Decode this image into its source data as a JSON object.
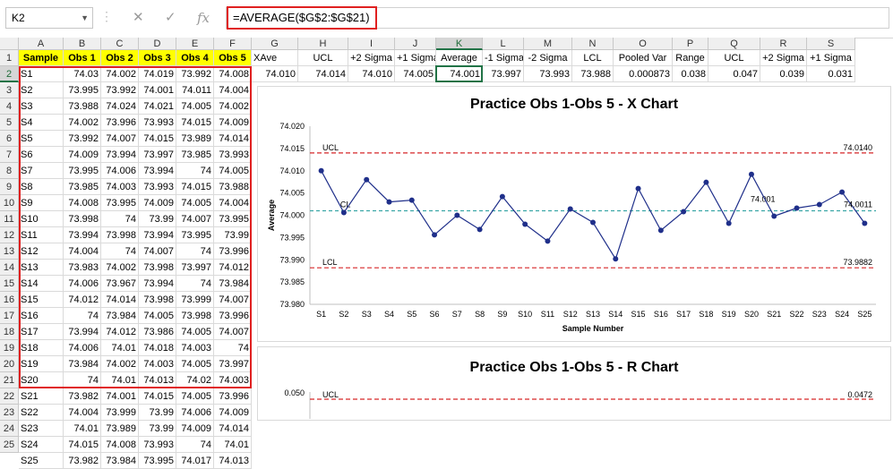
{
  "namebox": "K2",
  "formula": "=AVERAGE($G$2:$G$21)",
  "columns": [
    "A",
    "B",
    "C",
    "D",
    "E",
    "F",
    "G",
    "H",
    "I",
    "J",
    "K",
    "L",
    "M",
    "N",
    "O",
    "P",
    "Q",
    "R",
    "S"
  ],
  "header_row": [
    "Sample",
    "Obs 1",
    "Obs 2",
    "Obs 3",
    "Obs 4",
    "Obs 5",
    "XAve",
    "UCL",
    "+2 Sigma",
    "+1 Sigma",
    "Average",
    "-1 Sigma",
    "-2 Sigma",
    "LCL",
    "Pooled Var",
    "Range",
    "UCL",
    "+2 Sigma",
    "+1 Sigma"
  ],
  "row2_values": [
    "74.010",
    "74.014",
    "74.010",
    "74.005",
    "74.001",
    "73.997",
    "73.993",
    "73.988",
    "0.000873",
    "0.038",
    "0.047",
    "0.039",
    "0.031"
  ],
  "rows": [
    [
      "S1",
      "74.03",
      "74.002",
      "74.019",
      "73.992",
      "74.008"
    ],
    [
      "S2",
      "73.995",
      "73.992",
      "74.001",
      "74.011",
      "74.004"
    ],
    [
      "S3",
      "73.988",
      "74.024",
      "74.021",
      "74.005",
      "74.002"
    ],
    [
      "S4",
      "74.002",
      "73.996",
      "73.993",
      "74.015",
      "74.009"
    ],
    [
      "S5",
      "73.992",
      "74.007",
      "74.015",
      "73.989",
      "74.014"
    ],
    [
      "S6",
      "74.009",
      "73.994",
      "73.997",
      "73.985",
      "73.993"
    ],
    [
      "S7",
      "73.995",
      "74.006",
      "73.994",
      "74",
      "74.005"
    ],
    [
      "S8",
      "73.985",
      "74.003",
      "73.993",
      "74.015",
      "73.988"
    ],
    [
      "S9",
      "74.008",
      "73.995",
      "74.009",
      "74.005",
      "74.004"
    ],
    [
      "S10",
      "73.998",
      "74",
      "73.99",
      "74.007",
      "73.995"
    ],
    [
      "S11",
      "73.994",
      "73.998",
      "73.994",
      "73.995",
      "73.99"
    ],
    [
      "S12",
      "74.004",
      "74",
      "74.007",
      "74",
      "73.996"
    ],
    [
      "S13",
      "73.983",
      "74.002",
      "73.998",
      "73.997",
      "74.012"
    ],
    [
      "S14",
      "74.006",
      "73.967",
      "73.994",
      "74",
      "73.984"
    ],
    [
      "S15",
      "74.012",
      "74.014",
      "73.998",
      "73.999",
      "74.007"
    ],
    [
      "S16",
      "74",
      "73.984",
      "74.005",
      "73.998",
      "73.996"
    ],
    [
      "S17",
      "73.994",
      "74.012",
      "73.986",
      "74.005",
      "74.007"
    ],
    [
      "S18",
      "74.006",
      "74.01",
      "74.018",
      "74.003",
      "74"
    ],
    [
      "S19",
      "73.984",
      "74.002",
      "74.003",
      "74.005",
      "73.997"
    ],
    [
      "S20",
      "74",
      "74.01",
      "74.013",
      "74.02",
      "74.003"
    ],
    [
      "S21",
      "73.982",
      "74.001",
      "74.015",
      "74.005",
      "73.996"
    ],
    [
      "S22",
      "74.004",
      "73.999",
      "73.99",
      "74.006",
      "74.009"
    ],
    [
      "S23",
      "74.01",
      "73.989",
      "73.99",
      "74.009",
      "74.014"
    ],
    [
      "S24",
      "74.015",
      "74.008",
      "73.993",
      "74",
      "74.01"
    ],
    [
      "S25",
      "73.982",
      "73.984",
      "73.995",
      "74.017",
      "74.013"
    ]
  ],
  "row_numbers": [
    "1",
    "2",
    "3",
    "4",
    "5",
    "6",
    "7",
    "8",
    "9",
    "10",
    "11",
    "12",
    "13",
    "14",
    "15",
    "16",
    "17",
    "18",
    "19",
    "20",
    "21",
    "22",
    "23",
    "24",
    "25"
  ],
  "chart_data": [
    {
      "type": "line",
      "title": "Practice Obs 1-Obs 5 - X Chart",
      "xlabel": "Sample Number",
      "ylabel": "Average",
      "ylim": [
        73.98,
        74.02
      ],
      "yticks": [
        "74.020",
        "74.015",
        "74.010",
        "74.005",
        "74.000",
        "73.995",
        "73.990",
        "73.985",
        "73.980"
      ],
      "categories": [
        "S1",
        "S2",
        "S3",
        "S4",
        "S5",
        "S6",
        "S7",
        "S8",
        "S9",
        "S10",
        "S11",
        "S12",
        "S13",
        "S14",
        "S15",
        "S16",
        "S17",
        "S18",
        "S19",
        "S20",
        "S21",
        "S22",
        "S23",
        "S24",
        "S25"
      ],
      "values": [
        74.01,
        74.0006,
        74.008,
        74.003,
        74.0034,
        73.9956,
        74.0,
        73.9968,
        74.0042,
        73.998,
        73.9942,
        74.0014,
        73.9984,
        73.9902,
        74.006,
        73.9966,
        74.0008,
        74.0074,
        73.9982,
        74.0092,
        73.9998,
        74.0016,
        74.0024,
        74.0052,
        73.9982
      ],
      "ucl": 74.014,
      "ucl_label": "UCL",
      "ucl_value_label": "74.0140",
      "lcl": 73.9882,
      "lcl_label": "LCL",
      "lcl_value_label": "73.9882",
      "cl": 74.001,
      "cl_label": "CL",
      "cl_value_label": "74.001",
      "last_value_label": "74.0011",
      "colors": {
        "series": "#1f2f8a",
        "limits": "#d62728",
        "center": "#3aa6a6"
      }
    },
    {
      "type": "line",
      "title": "Practice Obs 1-Obs 5 - R Chart",
      "ytick_top": "0.050",
      "ucl_label": "UCL",
      "ucl_value_label": "0.0472"
    }
  ]
}
